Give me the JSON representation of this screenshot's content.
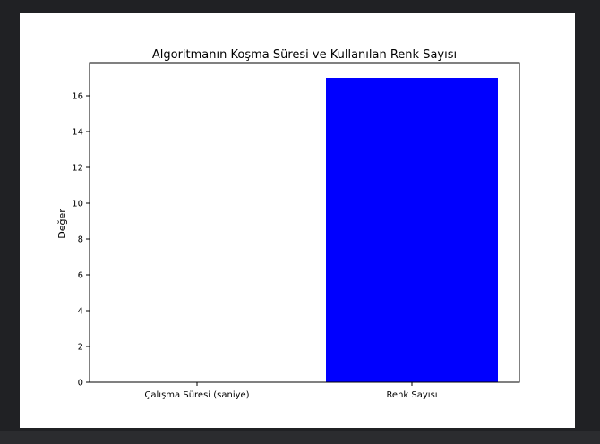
{
  "chart_data": {
    "type": "bar",
    "title": "Algoritmanın Koşma Süresi ve Kullanılan Renk Sayısı",
    "xlabel": "",
    "ylabel": "Değer",
    "categories": [
      "Çalışma Süresi (saniye)",
      "Renk Sayısı"
    ],
    "values": [
      0.0,
      17
    ],
    "bar_color": "#0000ff",
    "ylim": [
      0,
      17.85
    ],
    "yticks": [
      0,
      2,
      4,
      6,
      8,
      10,
      12,
      14,
      16
    ],
    "grid": false,
    "legend": "none"
  }
}
